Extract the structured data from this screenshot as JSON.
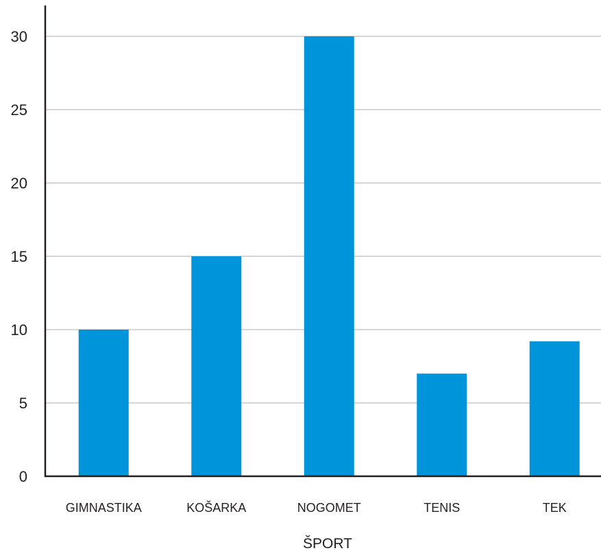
{
  "chart_data": {
    "type": "bar",
    "categories": [
      "GIMNASTIKA",
      "KOŠARKA",
      "NOGOMET",
      "TENIS",
      "TEK"
    ],
    "values": [
      10,
      15,
      30,
      7,
      9.2
    ],
    "xlabel": "ŠPORT",
    "ylabel": "",
    "ylim": [
      0,
      30
    ],
    "yticks": [
      0,
      5,
      10,
      15,
      20,
      25,
      30
    ],
    "grid": true,
    "bar_color": "#0095da",
    "grid_color": "#c8c8c8",
    "axis_color": "#231f20"
  }
}
